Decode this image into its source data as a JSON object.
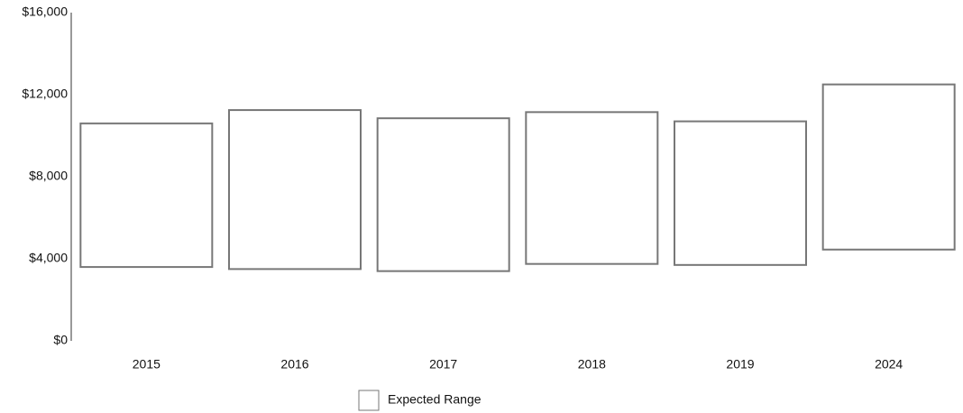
{
  "chart_data": {
    "type": "range_bar",
    "categories": [
      "2015",
      "2016",
      "2017",
      "2018",
      "2019",
      "2024"
    ],
    "series": [
      {
        "name": "Expected Range",
        "color": "#ffffff",
        "stroke": "#777777",
        "low": [
          3600,
          3500,
          3400,
          3750,
          3700,
          4450
        ],
        "high": [
          10600,
          11250,
          10850,
          11150,
          10700,
          12500
        ]
      }
    ],
    "ylim": [
      0,
      16000
    ],
    "yticks": [
      {
        "value": 0,
        "label": "$0"
      },
      {
        "value": 4000,
        "label": "$4,000"
      },
      {
        "value": 8000,
        "label": "$8,000"
      },
      {
        "value": 12000,
        "label": "$12,000"
      },
      {
        "value": 16000,
        "label": "$16,000"
      }
    ],
    "grid": false,
    "legend": "bottom"
  }
}
